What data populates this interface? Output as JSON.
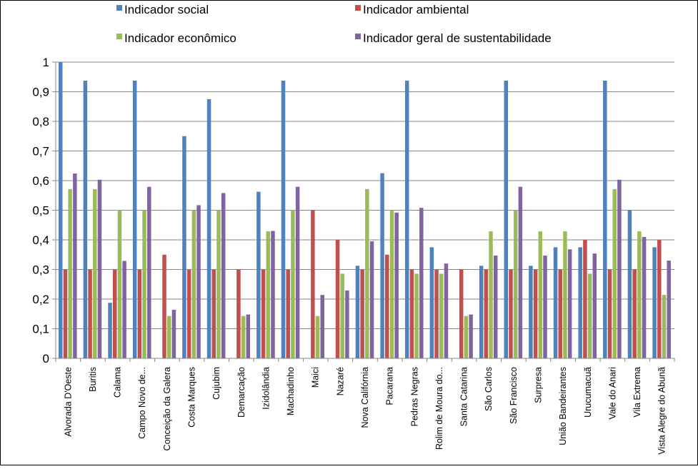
{
  "chart_data": {
    "type": "bar",
    "categories": [
      "Alvorada D'Oeste",
      "Buritis",
      "Calama",
      "Campo Novo de...",
      "Conceição da Galera",
      "Costa Marques",
      "Cujubim",
      "Demarcação",
      "Izidolândia",
      "Machadinho",
      "Maici",
      "Nazaré",
      "Nova Califórnia",
      "Pacarana",
      "Pedras Negras",
      "Rolim de Moura do...",
      "Santa Catarina",
      "São Carlos",
      "São Francisco",
      "Surpresa",
      "União Bandeirantes",
      "Urucumacuã",
      "Vale do Anari",
      "Vila Extrema",
      "Vista Alegre do Abunã"
    ],
    "series": [
      {
        "name": "Indicador social",
        "color": "#4F81BD",
        "values": [
          1,
          0.9375,
          0.1875,
          0.9375,
          0,
          0.75,
          0.875,
          0,
          0.5625,
          0.9375,
          0,
          0,
          0.3125,
          0.625,
          0.9375,
          0.375,
          0,
          0.3125,
          0.9375,
          0.3125,
          0.375,
          0.375,
          0.9375,
          0.5,
          0.375
        ]
      },
      {
        "name": "Indicador ambiental",
        "color": "#C0504D",
        "values": [
          0.3,
          0.3,
          0.3,
          0.3,
          0.35,
          0.3,
          0.3,
          0.3,
          0.3,
          0.3,
          0.5,
          0.4,
          0.3,
          0.35,
          0.3,
          0.3,
          0.3,
          0.3,
          0.3,
          0.3,
          0.3,
          0.4,
          0.3,
          0.3,
          0.4
        ]
      },
      {
        "name": "Indicador econômico",
        "color": "#9BBB59",
        "values": [
          0.5714,
          0.5714,
          0.5,
          0.5,
          0.1429,
          0.5,
          0.5,
          0.1429,
          0.4286,
          0.5,
          0.1429,
          0.2857,
          0.5714,
          0.5,
          0.2857,
          0.2857,
          0.1429,
          0.4286,
          0.5,
          0.4286,
          0.4286,
          0.2857,
          0.5714,
          0.4286,
          0.2143
        ]
      },
      {
        "name": "Indicador geral de sustentabilidade",
        "color": "#8064A2",
        "values": [
          0.624,
          0.603,
          0.329,
          0.579,
          0.164,
          0.517,
          0.558,
          0.148,
          0.43,
          0.579,
          0.214,
          0.229,
          0.395,
          0.492,
          0.508,
          0.32,
          0.148,
          0.347,
          0.579,
          0.347,
          0.368,
          0.354,
          0.603,
          0.41,
          0.33
        ]
      }
    ],
    "yticks": [
      "0",
      "0,1",
      "0,2",
      "0,3",
      "0,4",
      "0,5",
      "0,6",
      "0,7",
      "0,8",
      "0,9",
      "1"
    ],
    "ylim": [
      0,
      1
    ],
    "legend_position": "top",
    "grid": true
  }
}
